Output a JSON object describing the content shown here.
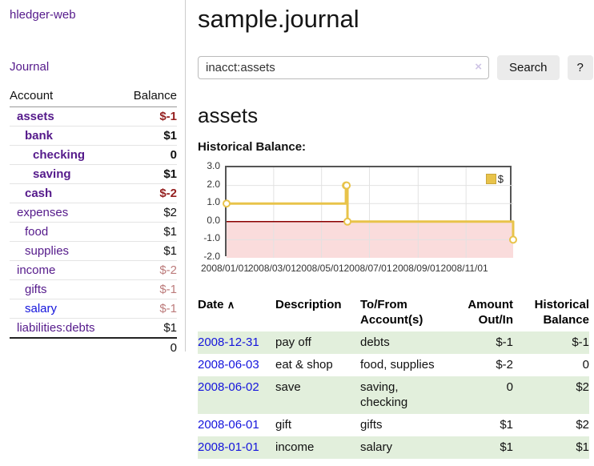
{
  "app_title": "hledger-web",
  "sidebar": {
    "nav_journal": "Journal",
    "accounts": {
      "col_account": "Account",
      "col_balance": "Balance",
      "rows": [
        {
          "name": "assets",
          "balance": "$-1"
        },
        {
          "name": "bank",
          "balance": "$1"
        },
        {
          "name": "checking",
          "balance": "0"
        },
        {
          "name": "saving",
          "balance": "$1"
        },
        {
          "name": "cash",
          "balance": "$-2"
        },
        {
          "name": "expenses",
          "balance": "$2"
        },
        {
          "name": "food",
          "balance": "$1"
        },
        {
          "name": "supplies",
          "balance": "$1"
        },
        {
          "name": "income",
          "balance": "$-2"
        },
        {
          "name": "gifts",
          "balance": "$-1"
        },
        {
          "name": "salary",
          "balance": "$-1"
        },
        {
          "name": "liabilities:debts",
          "balance": "$1"
        }
      ],
      "total": "0"
    }
  },
  "header": {
    "title": "sample.journal"
  },
  "search": {
    "value": "inacct:assets",
    "clear_icon": "×",
    "search_label": "Search",
    "help_label": "?"
  },
  "account_view": {
    "heading": "assets",
    "chart_title": "Historical Balance:"
  },
  "chart_data": {
    "type": "line",
    "step": true,
    "title": "Historical Balance",
    "xlim": [
      "2008-01-01",
      "2008-12-31"
    ],
    "ylim": [
      -2,
      3
    ],
    "y_ticks": [
      3.0,
      2.0,
      1.0,
      0.0,
      -1.0,
      -2.0
    ],
    "y_tick_labels": [
      "3.0",
      "2.0",
      "1.0",
      "0.0",
      "-1.0",
      "-2.0"
    ],
    "x_ticks": [
      "2008-01-01",
      "2008-03-01",
      "2008-05-01",
      "2008-07-01",
      "2008-09-01",
      "2008-11-01"
    ],
    "x_tick_labels": [
      "2008/01/01",
      "2008/03/01",
      "2008/05/01",
      "2008/07/01",
      "2008/09/01",
      "2008/11/01"
    ],
    "series": [
      {
        "name": "$",
        "points": [
          [
            "2008-01-01",
            1
          ],
          [
            "2008-06-01",
            2
          ],
          [
            "2008-06-02",
            2
          ],
          [
            "2008-06-03",
            0
          ],
          [
            "2008-12-31",
            -1
          ]
        ]
      }
    ],
    "legend": {
      "position": "top-right",
      "label": "$"
    },
    "colors": {
      "line": "#e8c34a",
      "marker_fill": "#ffffff",
      "negative_region": "#fadcdc",
      "zero_line": "#8b0000",
      "grid": "#e2e2e2"
    }
  },
  "register": {
    "headers": {
      "date": "Date",
      "sort_icon": "∧",
      "description": "Description",
      "accounts": "To/From Account(s)",
      "amount": "Amount Out/In",
      "balance": "Historical Balance"
    },
    "rows": [
      {
        "date": "2008-12-31",
        "description": "pay off",
        "accounts": "debts",
        "amount": "$-1",
        "balance": "$-1"
      },
      {
        "date": "2008-06-03",
        "description": "eat & shop",
        "accounts": "food, supplies",
        "amount": "$-2",
        "balance": "0"
      },
      {
        "date": "2008-06-02",
        "description": "save",
        "accounts": "saving, checking",
        "amount": "0",
        "balance": "$2"
      },
      {
        "date": "2008-06-01",
        "description": "gift",
        "accounts": "gifts",
        "amount": "$1",
        "balance": "$2"
      },
      {
        "date": "2008-01-01",
        "description": "income",
        "accounts": "salary",
        "amount": "$1",
        "balance": "$1"
      }
    ]
  },
  "colors": {
    "link_purple": "#551a8b",
    "link_blue": "#1414dc",
    "negative_strong": "#941f1f",
    "negative_soft": "#bc7b7b",
    "row_green": "#e2efdc"
  }
}
